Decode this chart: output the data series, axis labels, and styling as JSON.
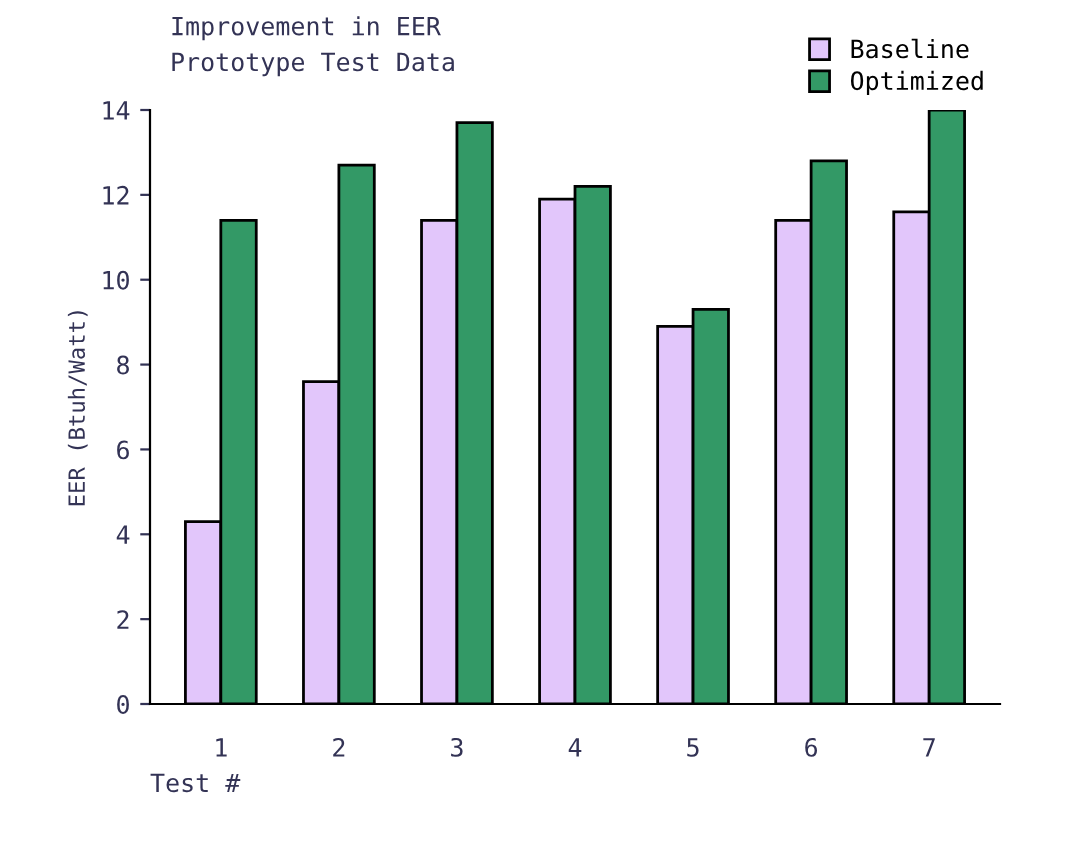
{
  "chart_data": {
    "type": "bar",
    "title": "Improvement in EER\nPrototype Test Data",
    "xlabel": "Test #",
    "ylabel": "EER (Btuh/Watt)",
    "categories": [
      "1",
      "2",
      "3",
      "4",
      "5",
      "6",
      "7"
    ],
    "series": [
      {
        "name": "Baseline",
        "color": "#e2c6fb",
        "values": [
          4.3,
          7.6,
          11.4,
          11.9,
          8.9,
          11.4,
          11.6
        ]
      },
      {
        "name": "Optimized",
        "color": "#339966",
        "values": [
          11.4,
          12.7,
          13.7,
          12.2,
          9.3,
          12.8,
          14.0
        ]
      }
    ],
    "ylim": [
      0,
      14
    ],
    "yticks": [
      0,
      2,
      4,
      6,
      8,
      10,
      12,
      14
    ],
    "grid": false,
    "legend": "top right"
  }
}
